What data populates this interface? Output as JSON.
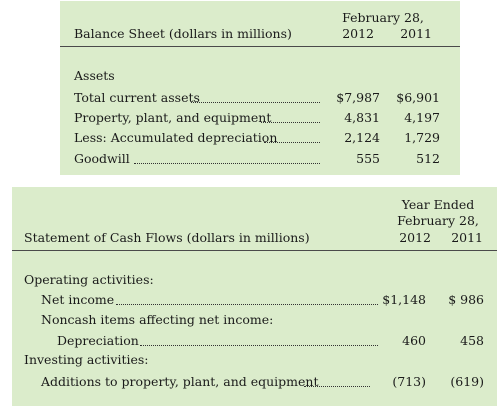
{
  "balance_sheet": {
    "title": "Balance Sheet (dollars in millions)",
    "period_label": "February 28,",
    "years": [
      "2012",
      "2011"
    ],
    "section": "Assets",
    "rows": [
      {
        "label": "Total current assets",
        "v2012": "$7,987",
        "v2011": "$6,901"
      },
      {
        "label": "Property, plant, and equipment",
        "v2012": "4,831",
        "v2011": "4,197"
      },
      {
        "label": "Less: Accumulated depreciation",
        "v2012": "2,124",
        "v2011": "1,729"
      },
      {
        "label": "Goodwill",
        "v2012": "555",
        "v2011": "512"
      }
    ]
  },
  "cash_flows": {
    "title": "Statement of Cash Flows (dollars in millions)",
    "period_line1": "Year Ended",
    "period_line2": "February 28,",
    "years": [
      "2012",
      "2011"
    ],
    "operating_header": "Operating activities:",
    "net_income": {
      "label": "Net income",
      "v2012": "$1,148",
      "v2011": "$ 986"
    },
    "noncash_header": "Noncash items affecting net income:",
    "depreciation": {
      "label": "Depreciation",
      "v2012": "460",
      "v2011": "458"
    },
    "investing_header": "Investing activities:",
    "additions": {
      "label": "Additions to property, plant, and equipment",
      "v2012": "(713)",
      "v2011": "(619)"
    }
  }
}
